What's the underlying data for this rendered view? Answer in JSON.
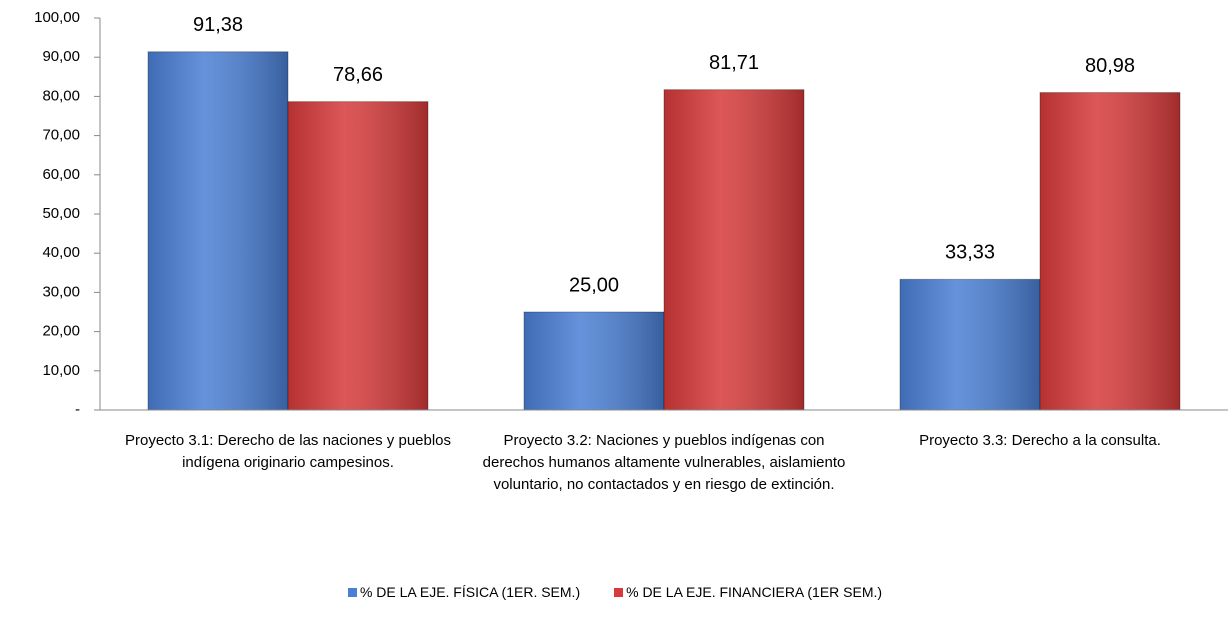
{
  "chart_data": {
    "type": "bar",
    "categories": [
      "Proyecto 3.1: Derecho  de las naciones y pueblos indígena originario campesinos.",
      "Proyecto 3.2: Naciones y pueblos indígenas con derechos humanos altamente vulnerables,  aislamiento voluntario, no contactados y en riesgo de extinción.",
      "Proyecto 3.3: Derecho a la consulta."
    ],
    "series": [
      {
        "name": "% DE LA EJE. FÍSICA (1ER. SEM.)",
        "color": "#4a7fd4",
        "values": [
          91.38,
          25.0,
          33.33
        ],
        "value_labels": [
          "91,38",
          "25,00",
          "33,33"
        ]
      },
      {
        "name": "% DE LA EJE. FINANCIERA (1ER SEM.)",
        "color": "#d63a3a",
        "values": [
          78.66,
          81.71,
          80.98
        ],
        "value_labels": [
          "78,66",
          "81,71",
          "80,98"
        ]
      }
    ],
    "ylim": [
      0,
      100
    ],
    "yticks": [
      {
        "value": 0,
        "label": "-"
      },
      {
        "value": 10,
        "label": "10,00"
      },
      {
        "value": 20,
        "label": "20,00"
      },
      {
        "value": 30,
        "label": "30,00"
      },
      {
        "value": 40,
        "label": "40,00"
      },
      {
        "value": 50,
        "label": "50,00"
      },
      {
        "value": 60,
        "label": "60,00"
      },
      {
        "value": 70,
        "label": "70,00"
      },
      {
        "value": 80,
        "label": "80,00"
      },
      {
        "value": 90,
        "label": "90,00"
      },
      {
        "value": 100,
        "label": "100,00"
      }
    ],
    "legend": "bottom"
  }
}
